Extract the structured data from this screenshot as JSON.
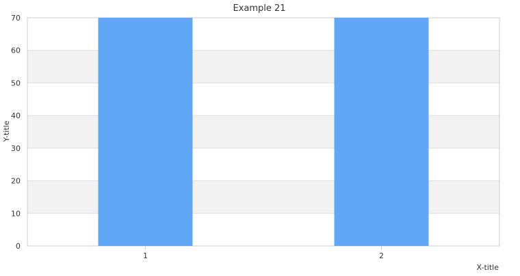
{
  "chart_data": {
    "type": "bar",
    "title": "Example 21",
    "xlabel": "X-title",
    "ylabel": "Y-title",
    "categories": [
      "1",
      "2"
    ],
    "values": [
      70,
      70
    ],
    "ylim": [
      0,
      70
    ],
    "yticks": [
      0,
      10,
      20,
      30,
      40,
      50,
      60,
      70
    ],
    "grid": true,
    "colors": {
      "bar": "#60a8f5",
      "band": "#f2f2f2",
      "grid": "#dddddd",
      "axis": "#cccccc",
      "text": "#333333"
    }
  }
}
